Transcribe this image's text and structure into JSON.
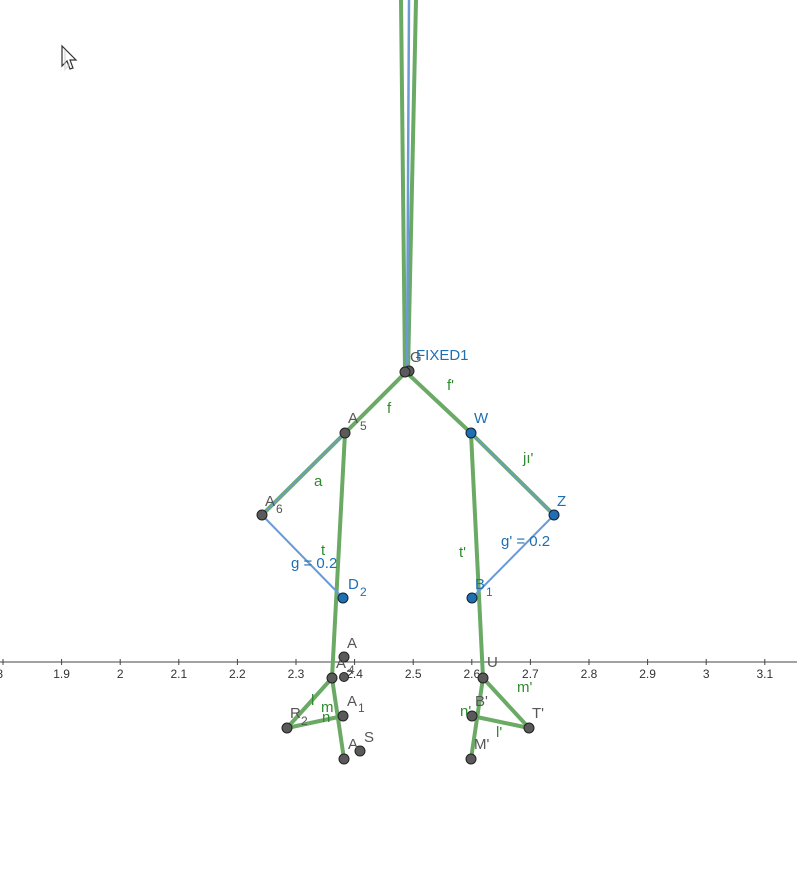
{
  "axis": {
    "ticks": [
      "8",
      "1.9",
      "2",
      "2.1",
      "2.2",
      "2.3",
      "2.4",
      "2.5",
      "2.6",
      "2.7",
      "2.8",
      "2.9",
      "3",
      "3.1"
    ]
  },
  "colors": {
    "green": "#6aaa64",
    "green_text": "#2f8a2f",
    "blue": "#6b9bd6",
    "blue_text": "#1f6fb2",
    "point_gray": "#5a5a5a",
    "point_blue": "#1f6fb2"
  },
  "labels": {
    "fixed1": "FIXED1",
    "fixed1_under": "G",
    "f": "f",
    "f_prime": "f'",
    "a5": "A",
    "a5_sub": "5",
    "w": "W",
    "j_prime": "jı'",
    "a_seg": "a",
    "a6": "A",
    "a6_sub": "6",
    "z": "Z",
    "t": "t",
    "g_eq": "g = 0.2",
    "t_prime": "t'",
    "g_prime_eq": "g' = 0.2",
    "d2": "D",
    "d2_sub": "2",
    "b1": "B",
    "b1_sub": "1",
    "a_top": "A",
    "a4": "A",
    "a4_sub": "4",
    "u_prime": "U",
    "m_prime": "m'",
    "l": "l",
    "m": "m",
    "a1": "A",
    "a1_sub": "1",
    "r2": "R",
    "r2_sub": "2",
    "n": "n",
    "b_prime": "B'",
    "n_prime": "n'",
    "t_cap_prime": "T'",
    "l_prime": "l'",
    "s": "S",
    "a_bottom": "A",
    "m_cap_prime": "M'"
  }
}
